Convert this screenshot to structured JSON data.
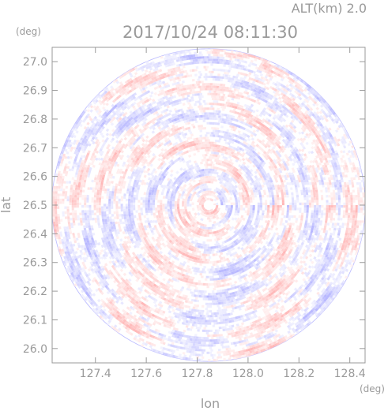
{
  "chart_data": {
    "type": "heatmap",
    "header": "ALT(km) 2.0",
    "title": "2017/10/24 08:11:30",
    "xlabel": "lon",
    "ylabel": "lat",
    "x_unit": "(deg)",
    "y_unit": "(deg)",
    "xlim": [
      127.23,
      128.46
    ],
    "ylim": [
      25.95,
      27.05
    ],
    "x_ticks": [
      "127.4",
      "127.6",
      "127.8",
      "128.0",
      "128.2",
      "128.4"
    ],
    "y_ticks": [
      "26.0",
      "26.1",
      "26.2",
      "26.3",
      "26.4",
      "26.5",
      "26.6",
      "26.7",
      "26.8",
      "26.9",
      "27.0"
    ],
    "center": {
      "lon": 127.845,
      "lat": 26.5
    },
    "radius_deg_lat": 0.545,
    "colors": {
      "positive": "#ff9a9a",
      "negative": "#9a9aff",
      "neutral": "#ffffff",
      "axis": "#9a9a9a"
    }
  }
}
